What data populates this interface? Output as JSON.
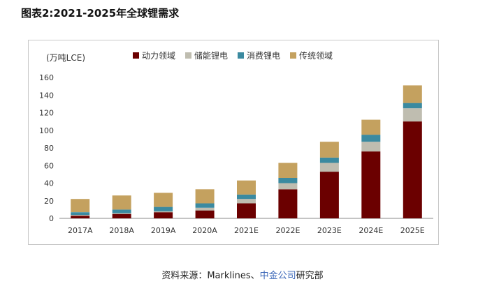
{
  "figure": {
    "title": "图表2:2021-2025年全球锂需求"
  },
  "source": {
    "prefix": "资料来源：Marklines、",
    "link": "中金公司",
    "suffix": "研究部"
  },
  "colors": {
    "axis": "#888888",
    "text": "#333333"
  },
  "chart_data": {
    "type": "bar",
    "stacked": true,
    "unit_label": "(万吨LCE)",
    "categories": [
      "2017A",
      "2018A",
      "2019A",
      "2020A",
      "2021E",
      "2022E",
      "2023E",
      "2024E",
      "2025E"
    ],
    "series": [
      {
        "name": "动力领域",
        "color": "#6b0000",
        "values": [
          3,
          5,
          7,
          9,
          17,
          33,
          53,
          76,
          110
        ]
      },
      {
        "name": "储能锂电",
        "color": "#bfbdb0",
        "values": [
          1,
          1,
          1,
          3,
          5,
          7,
          10,
          11,
          15
        ]
      },
      {
        "name": "消费锂电",
        "color": "#3b8aa0",
        "values": [
          3,
          4,
          5,
          5,
          5,
          6,
          6,
          8,
          6
        ]
      },
      {
        "name": "传统领域",
        "color": "#c4a15f",
        "values": [
          15,
          16,
          16,
          16,
          16,
          17,
          18,
          17,
          20
        ]
      }
    ],
    "ylim": [
      0,
      160
    ],
    "yticks": [
      0,
      20,
      40,
      60,
      80,
      100,
      120,
      140,
      160
    ],
    "grid": false,
    "legend_position": "top"
  }
}
